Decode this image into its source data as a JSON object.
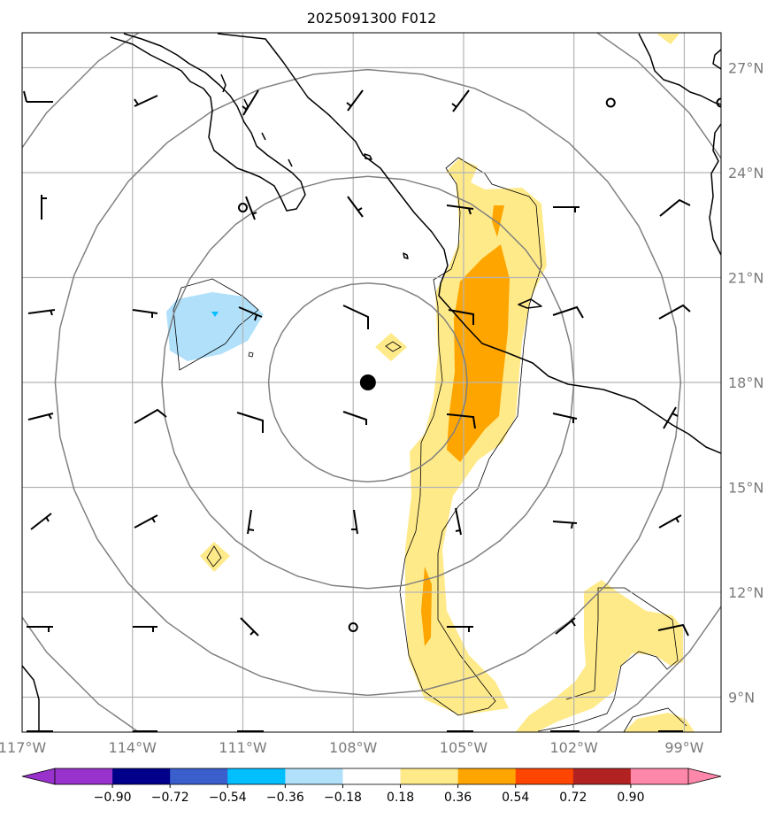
{
  "title": "2025091300 F012",
  "map": {
    "extent": {
      "lon_min": -117,
      "lon_max": -98,
      "lat_min": 8,
      "lat_max": 28
    },
    "latitude_labels": [
      "27°N",
      "24°N",
      "21°N",
      "18°N",
      "15°N",
      "12°N",
      "9°N"
    ],
    "latitude_values": [
      27,
      24,
      21,
      18,
      15,
      12,
      9
    ],
    "longitude_labels": [
      "117°W",
      "114°W",
      "111°W",
      "108°W",
      "105°W",
      "102°W",
      "99°W"
    ],
    "longitude_values": [
      -117,
      -114,
      -111,
      -108,
      -105,
      -102,
      -99
    ],
    "center_marker": {
      "lon": -107.6,
      "lat": 18.0
    },
    "range_rings_deg": [
      2.7,
      5.6,
      8.5,
      11.4
    ],
    "calm_wind_markers": [
      {
        "lon": -111.0,
        "lat": 23.0
      },
      {
        "lon": -101.0,
        "lat": 26.0
      },
      {
        "lon": -98.0,
        "lat": 26.0
      },
      {
        "lon": -108.0,
        "lat": 11.0
      }
    ]
  },
  "colorbar": {
    "tick_labels": [
      "−0.90",
      "−0.72",
      "−0.54",
      "−0.36",
      "−0.18",
      "0.18",
      "0.36",
      "0.54",
      "0.72",
      "0.90"
    ],
    "tick_values": [
      -0.9,
      -0.72,
      -0.54,
      -0.36,
      -0.18,
      0.18,
      0.36,
      0.54,
      0.72,
      0.9
    ],
    "colors": [
      "#9932cc",
      "#00008b",
      "#3a5fcd",
      "#00bfff",
      "#b0e0fa",
      "#ffffff",
      "#ffea8a",
      "#ffa500",
      "#ff4500",
      "#b22222",
      "#ff88aa"
    ]
  },
  "fill_colors": {
    "light_yellow": "#ffea8a",
    "orange": "#ffa500",
    "light_blue": "#b0e0fa",
    "cyan": "#00bfff"
  }
}
